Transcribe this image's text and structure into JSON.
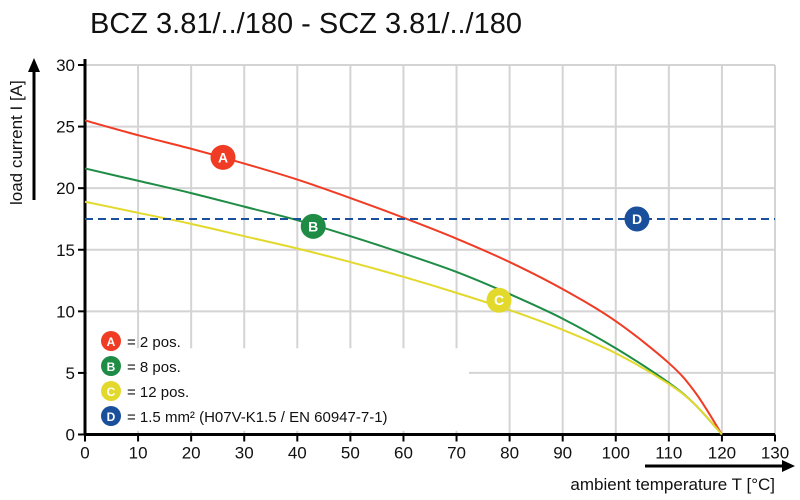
{
  "chart_data": {
    "type": "line",
    "title": "BCZ 3.81/../180 - SCZ 3.81/../180",
    "xlabel": "ambient temperature T [°C]",
    "ylabel": "load current I [A]",
    "xlim": [
      0,
      130
    ],
    "ylim": [
      0,
      30
    ],
    "xticks": [
      0,
      10,
      20,
      30,
      40,
      50,
      60,
      70,
      80,
      90,
      100,
      110,
      120,
      130
    ],
    "yticks": [
      0,
      5,
      10,
      15,
      20,
      25,
      30
    ],
    "grid": true,
    "legend_placement": "bottom-left",
    "x": [
      0,
      10,
      20,
      30,
      40,
      50,
      60,
      70,
      80,
      90,
      100,
      110,
      115,
      120
    ],
    "series": [
      {
        "marker": "A",
        "label": "= 2 pos.",
        "color": "#f03c24",
        "marker_at": [
          26,
          22.5
        ],
        "values": [
          25.5,
          24.3,
          23.2,
          22.0,
          20.7,
          19.2,
          17.6,
          15.9,
          14.0,
          11.8,
          9.2,
          5.8,
          3.4,
          0
        ]
      },
      {
        "marker": "B",
        "label": "= 8 pos.",
        "color": "#1e8c45",
        "marker_at": [
          43,
          16.9
        ],
        "values": [
          21.6,
          20.6,
          19.6,
          18.5,
          17.4,
          16.1,
          14.7,
          13.2,
          11.4,
          9.4,
          7.0,
          4.2,
          2.4,
          0
        ]
      },
      {
        "marker": "C",
        "label": "= 12 pos.",
        "color": "#e2d92c",
        "marker_at": [
          78,
          10.9
        ],
        "values": [
          18.9,
          18.0,
          17.1,
          16.1,
          15.1,
          14.0,
          12.8,
          11.5,
          10.1,
          8.5,
          6.6,
          4.1,
          2.4,
          0
        ]
      },
      {
        "marker": "D",
        "label": "= 1.5 mm² (H07V-K1.5 / EN 60947-7-1)",
        "color": "#1a4f9c",
        "marker_at": [
          104,
          17.5
        ],
        "dashed": true,
        "constant": 17.5
      }
    ]
  }
}
